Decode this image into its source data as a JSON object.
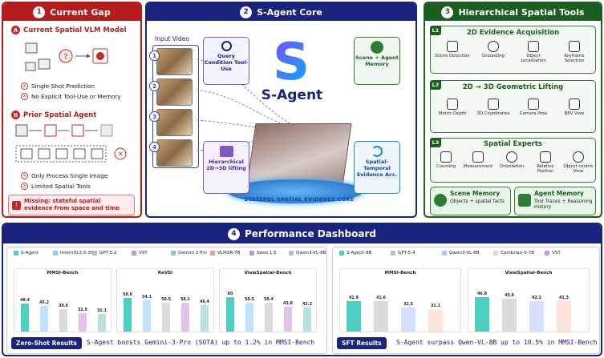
{
  "p1": {
    "num": "1",
    "title": "Current Gap",
    "a_badge": "A",
    "a_title": "Current Spatial VLM Model",
    "a_items": [
      "Single-Shot Prediction",
      "No Explicit Tool-Use or Memory"
    ],
    "b_badge": "B",
    "b_title": "Prior Spatial Agent",
    "b_items": [
      "Only Process Single Image",
      "Limited Spatial Tools"
    ],
    "missing": "Missing: stateful spatial evidence from space and time"
  },
  "p2": {
    "num": "2",
    "title": "S-Agent Core",
    "input_video": "Input Video",
    "frames": [
      "1",
      "2",
      "3",
      "4"
    ],
    "query": "Query Condition Tool-Use",
    "memory": "Scene + Agent Memory",
    "hierarchical": "Hierarchical 2D→3D lifting",
    "temporal": "Spatial-Temporal Evidence Acc.",
    "logo": "S-Agent",
    "core": "STATEFUL SPATIAL EVIDENCE CORE"
  },
  "p3": {
    "num": "3",
    "title": "Hierarchical Spatial Tools",
    "l1": {
      "tag": "L1",
      "title": "2D Evidence Acquisition",
      "tools": [
        "Scene Detection",
        "Grounding",
        "Object Localization",
        "Keyframe Selection"
      ]
    },
    "l2": {
      "tag": "L2",
      "title": "2D → 3D Geometric Lifting",
      "tools": [
        "Metric Depth",
        "3D Coordinates",
        "Camera Pose",
        "BEV View"
      ]
    },
    "l3": {
      "tag": "L3",
      "title": "Spatial Experts",
      "tools": [
        "Counting",
        "Measurement",
        "Orientation",
        "Relative Position",
        "Object-centric View"
      ]
    },
    "scene": {
      "title": "Scene Memory",
      "desc": "Objects + spatial facts"
    },
    "agent": {
      "title": "Agent Memory",
      "desc": "Tool Traces + Reasoning History"
    }
  },
  "p4": {
    "num": "4",
    "title": "Performance Dashboard",
    "zs_label": "Zero-Shot Results",
    "zs_text": "S-Agent boosts Gemini-3-Pro (SOTA) up to 1.2% in MMSI-Bench",
    "sft_label": "SFT Results",
    "sft_text": "S-Agent surpass Qwen-VL-8B up to 10.5% in MMSI-Bench"
  },
  "chart_data": [
    {
      "type": "bar",
      "legend": [
        "S-Agent",
        "InternVL3.5-38B",
        "GPT-5.2",
        "VST",
        "Gemini 3 Pro",
        "VLM3R-7B",
        "Seed 1.6",
        "Qwen3-VL-8B"
      ],
      "colors": [
        "#4dd0c1",
        "#90caf9",
        "#bdbdbd",
        "#ce93d8",
        "#80cbc4",
        "#ef9a9a",
        "#b39ddb",
        "#b0bec5"
      ],
      "panels": [
        {
          "title": "MMSI-Bench",
          "values": [
            48.4,
            45.2,
            38.6,
            32.5,
            31.1
          ]
        },
        {
          "title": "ReVSI",
          "values": [
            58.6,
            54.1,
            50.5,
            50.1,
            46.4
          ]
        },
        {
          "title": "ViewSpatial-Bench",
          "values": [
            60,
            50.5,
            50.4,
            43.8,
            42.2
          ]
        }
      ]
    },
    {
      "type": "bar",
      "legend": [
        "S-Agent-8B",
        "GPT-5.4",
        "Qwen3-VL-8B",
        "Cambrian-S-7B",
        "VST"
      ],
      "colors": [
        "#4dd0c1",
        "#bdbdbd",
        "#b3c5ff",
        "#ffccbc",
        "#ce93d8"
      ],
      "panels": [
        {
          "title": "MMSI-Bench",
          "values": [
            41.9,
            41.6,
            32.5,
            31.1
          ]
        },
        {
          "title": "ViewSpatial-Bench",
          "values": [
            46.8,
            45.6,
            42.2,
            41.3
          ]
        }
      ]
    }
  ]
}
